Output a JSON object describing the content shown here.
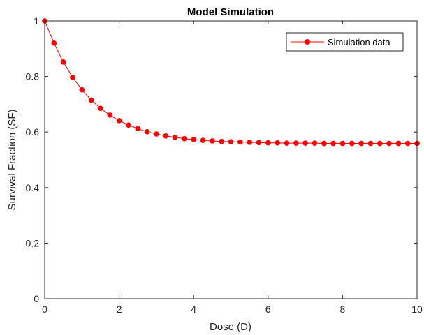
{
  "chart_data": {
    "type": "line",
    "title": "Model Simulation",
    "xlabel": "Dose (D)",
    "ylabel": "Survival Fraction (SF)",
    "xlim": [
      0,
      10
    ],
    "ylim": [
      0,
      1
    ],
    "xticks": [
      0,
      2,
      4,
      6,
      8,
      10
    ],
    "yticks": [
      0,
      0.2,
      0.4,
      0.6,
      0.8,
      1
    ],
    "xtick_labels": [
      "0",
      "2",
      "4",
      "6",
      "8",
      "10"
    ],
    "ytick_labels": [
      "0",
      "0.2",
      "0.4",
      "0.6",
      "0.8",
      "1"
    ],
    "grid": false,
    "legend_position": "top-right",
    "series": [
      {
        "name": "Simulation data",
        "color": "#ff0000",
        "marker": "circle",
        "x": [
          0,
          0.25,
          0.5,
          0.75,
          1.0,
          1.25,
          1.5,
          1.75,
          2.0,
          2.25,
          2.5,
          2.75,
          3.0,
          3.25,
          3.5,
          3.75,
          4.0,
          4.25,
          4.5,
          4.75,
          5.0,
          5.25,
          5.5,
          5.75,
          6.0,
          6.25,
          6.5,
          6.75,
          7.0,
          7.25,
          7.5,
          7.75,
          8.0,
          8.25,
          8.5,
          8.75,
          9.0,
          9.25,
          9.5,
          9.75,
          10.0
        ],
        "y": [
          1.0,
          0.92,
          0.852,
          0.797,
          0.752,
          0.715,
          0.685,
          0.661,
          0.641,
          0.625,
          0.612,
          0.601,
          0.593,
          0.586,
          0.581,
          0.576,
          0.573,
          0.57,
          0.568,
          0.566,
          0.565,
          0.564,
          0.563,
          0.562,
          0.561,
          0.561,
          0.56,
          0.56,
          0.56,
          0.56,
          0.559,
          0.559,
          0.559,
          0.559,
          0.559,
          0.559,
          0.559,
          0.559,
          0.559,
          0.559,
          0.559
        ]
      }
    ]
  }
}
